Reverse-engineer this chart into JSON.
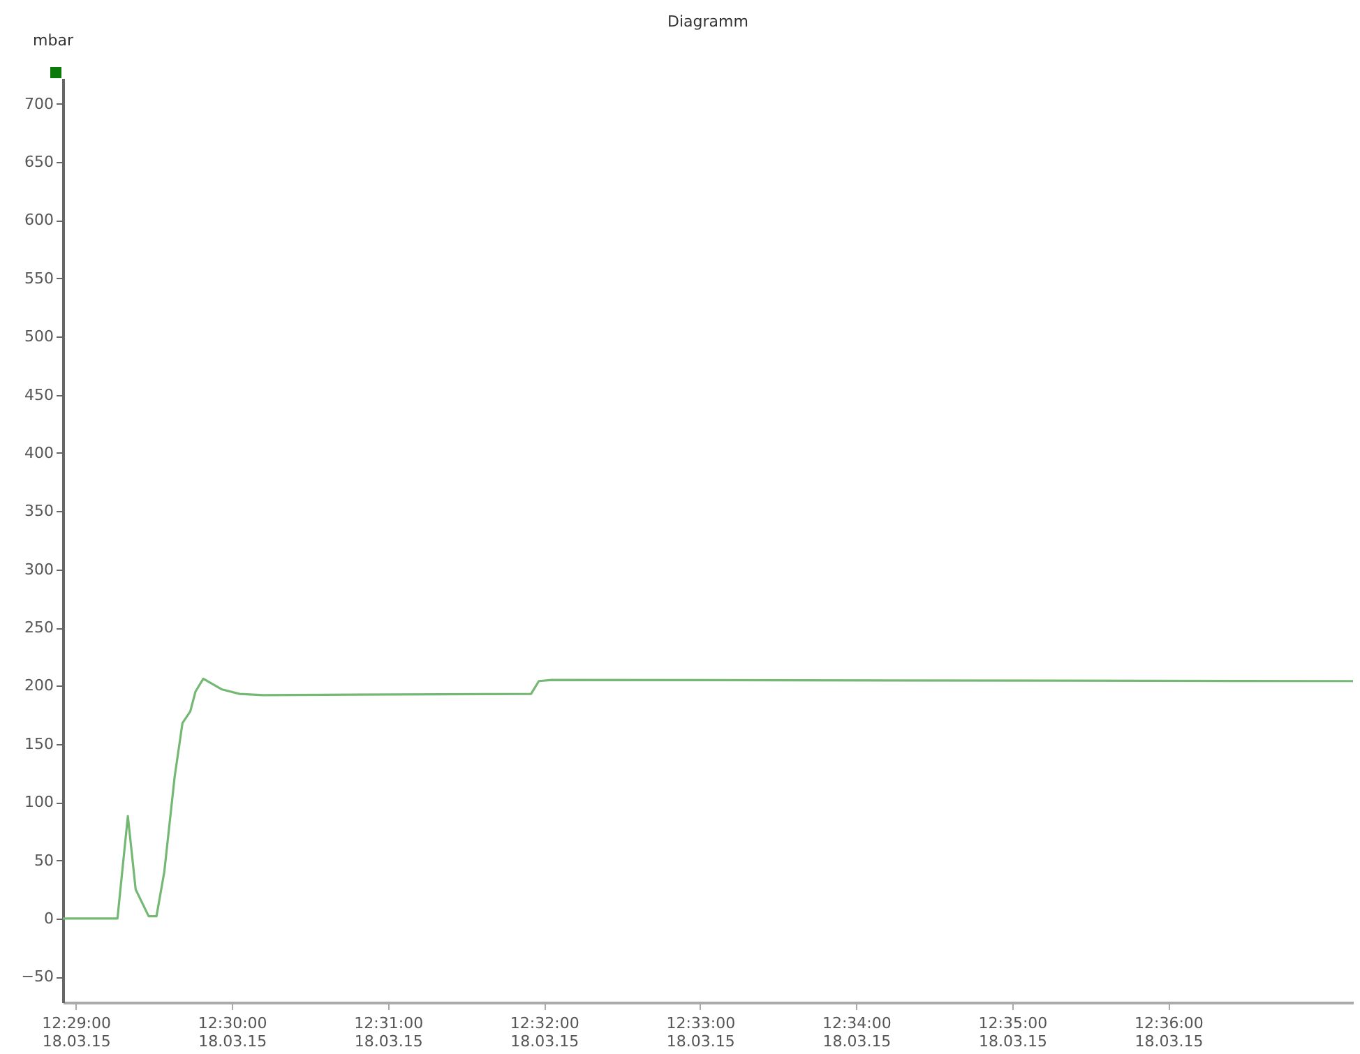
{
  "chart_data": {
    "type": "line",
    "title": "Diagramm",
    "ylabel": "mbar",
    "x": [
      "--03-18T12:28:55",
      "--03-18T12:29:16",
      "--03-18T12:29:20",
      "--03-18T12:29:23",
      "--03-18T12:29:28",
      "--03-18T12:29:31",
      "--03-18T12:29:34",
      "--03-18T12:29:38",
      "--03-18T12:29:41",
      "--03-18T12:29:44",
      "--03-18T12:29:46",
      "--03-18T12:29:49",
      "--03-18T12:29:56",
      "--03-18T12:30:03",
      "--03-18T12:30:12",
      "--03-18T12:31:55",
      "--03-18T12:31:58",
      "--03-18T12:32:03",
      "--03-18T12:37:11"
    ],
    "series": [
      {
        "color": "#74b874",
        "values": [
          0,
          0,
          88,
          25,
          2,
          2,
          40,
          122,
          168,
          178,
          195,
          206,
          197,
          193,
          192,
          193,
          204,
          205,
          204
        ]
      }
    ],
    "xlim": [
      "--03-18T12:28:55",
      "--03-18T12:37:11"
    ],
    "xticks": [
      {
        "value": "--03-18T12:29:00",
        "label": "12:29:00\n18.03.15"
      },
      {
        "value": "--03-18T12:30:00",
        "label": "12:30:00\n18.03.15"
      },
      {
        "value": "--03-18T12:31:00",
        "label": "12:31:00\n18.03.15"
      },
      {
        "value": "--03-18T12:32:00",
        "label": "12:32:00\n18.03.15"
      },
      {
        "value": "--03-18T12:33:00",
        "label": "12:33:00\n18.03.15"
      },
      {
        "value": "--03-18T12:34:00",
        "label": "12:34:00\n18.03.15"
      },
      {
        "value": "--03-18T12:35:00",
        "label": "12:35:00\n18.03.15"
      },
      {
        "value": "--03-18T12:36:00",
        "label": "12:36:00\n18.03.15"
      }
    ],
    "ylim": [
      -72,
      722
    ],
    "yticks": [
      -50,
      0,
      50,
      100,
      150,
      200,
      250,
      300,
      350,
      400,
      450,
      500,
      550,
      600,
      650,
      700
    ],
    "grid": false,
    "marker": "none",
    "line_style": "solid"
  }
}
